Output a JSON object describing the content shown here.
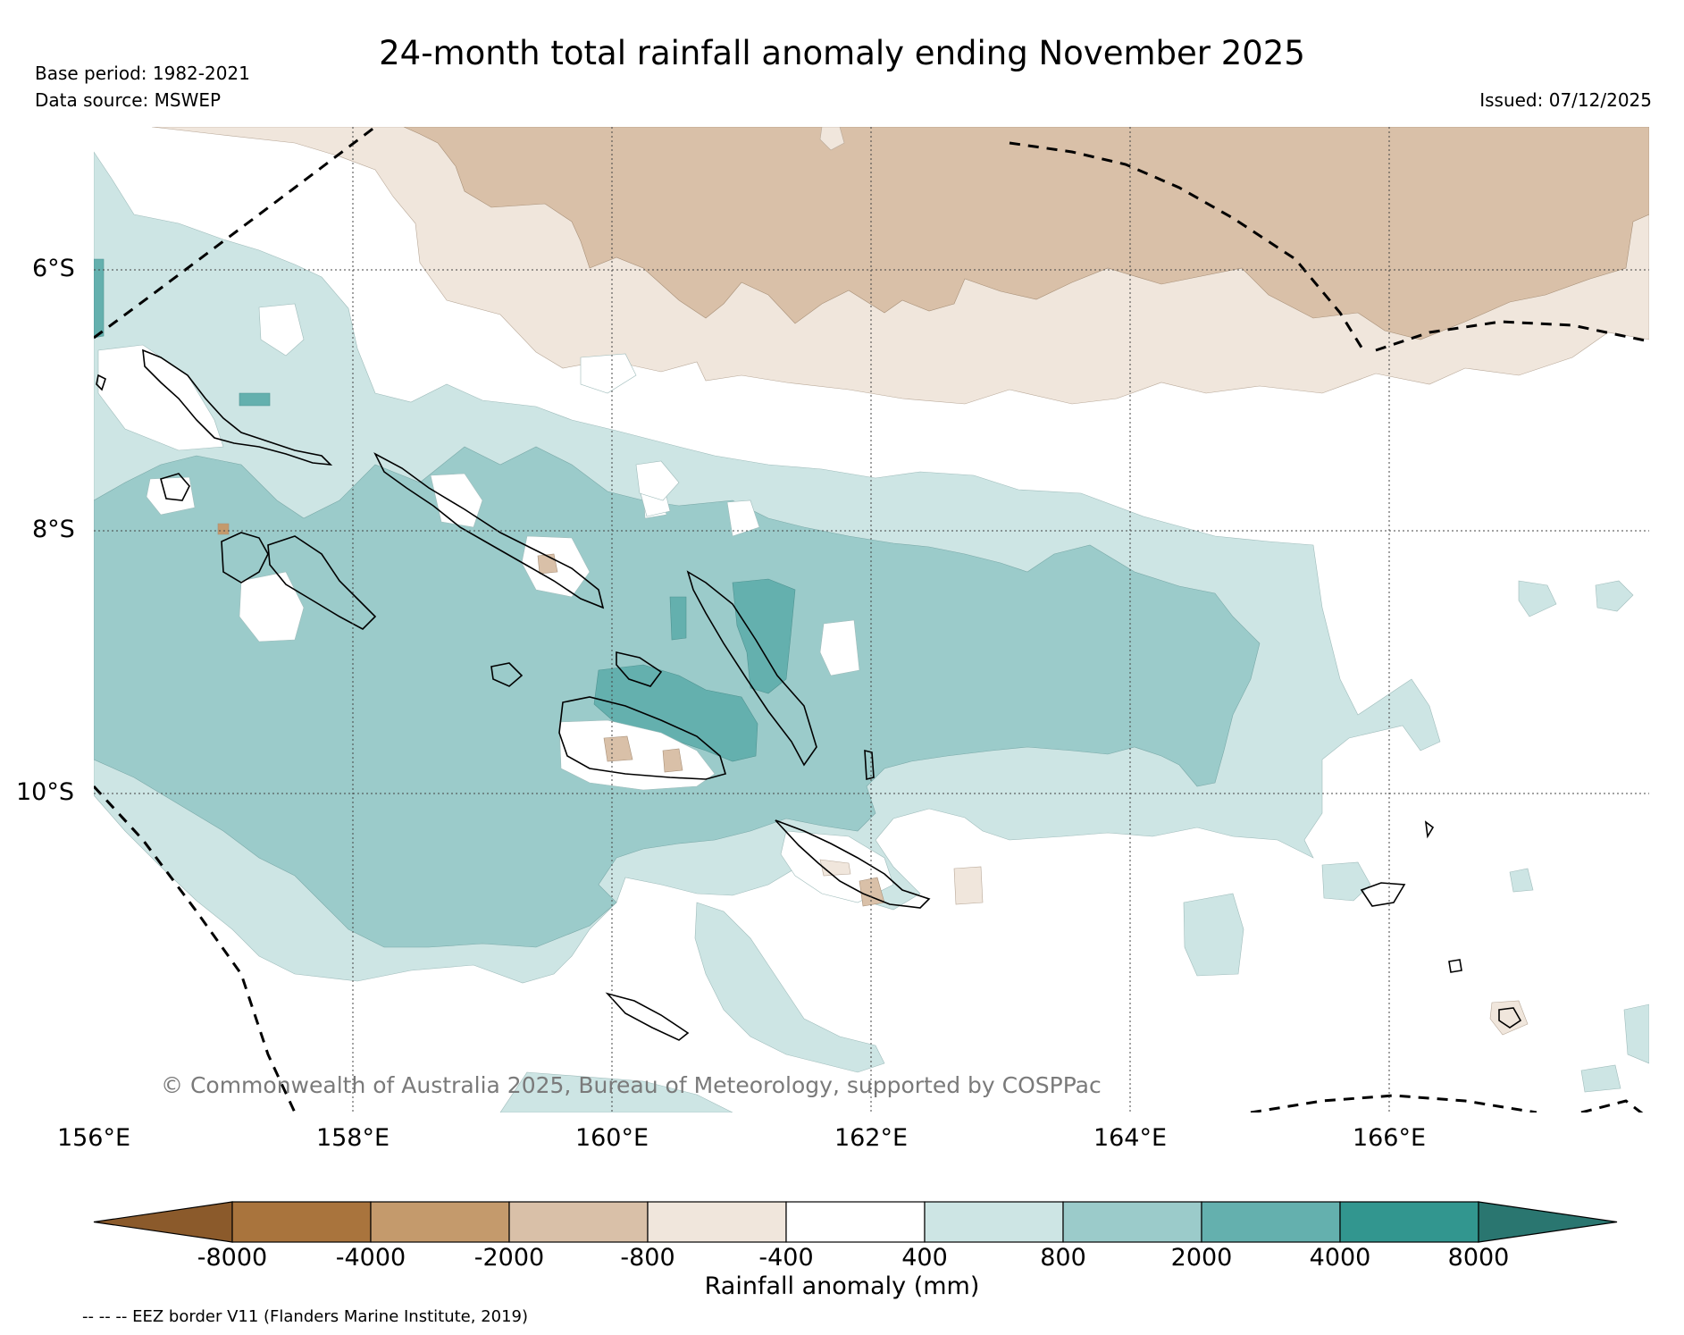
{
  "header": {
    "title": "24-month total rainfall anomaly ending November 2025",
    "base_period": "Base period: 1982-2021",
    "data_source": "Data source: MSWEP",
    "issued": "Issued: 07/12/2025"
  },
  "map": {
    "lat_labels": [
      "6°S",
      "8°S",
      "10°S"
    ],
    "lon_labels": [
      "156°E",
      "158°E",
      "160°E",
      "162°E",
      "164°E",
      "166°E"
    ],
    "credit": "© Commonwealth of Australia 2025, Bureau of Meteorology, supported by COSPPac"
  },
  "colorbar": {
    "title": "Rainfall anomaly (mm)",
    "tick_labels": [
      "-8000",
      "-4000",
      "-2000",
      "-800",
      "-400",
      "400",
      "800",
      "2000",
      "4000",
      "8000"
    ],
    "colors": [
      "#8b5a2b",
      "#a9743d",
      "#c49a6c",
      "#d9c0a8",
      "#f0e6dc",
      "#ffffff",
      "#cde5e4",
      "#9bcbca",
      "#64b0ae",
      "#32968f",
      "#2a7670"
    ]
  },
  "footer": {
    "eez_note": "-- -- -- EEZ border V11 (Flanders Marine Institute, 2019)"
  }
}
